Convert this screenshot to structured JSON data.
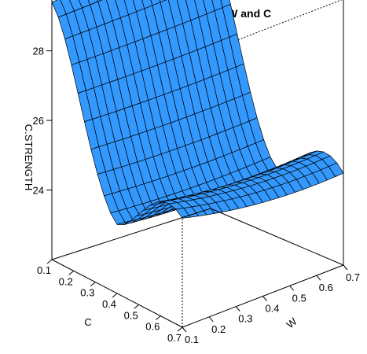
{
  "chart_data": {
    "type": "surface",
    "title": "C.STRENGTH vs W and C",
    "xlabel": "W",
    "ylabel": "C",
    "zlabel": "C.STRENGTH",
    "x_ticks": [
      "0.1",
      "0.2",
      "0.3",
      "0.4",
      "0.5",
      "0.6",
      "0.7"
    ],
    "y_ticks": [
      "0.1",
      "0.2",
      "0.3",
      "0.4",
      "0.5",
      "0.6",
      "0.7"
    ],
    "z_ticks": [
      "24",
      "26",
      "28"
    ],
    "xlim": [
      0.1,
      0.7
    ],
    "ylim": [
      0.1,
      0.7
    ],
    "zlim": [
      22.0,
      29.8
    ],
    "surface_color": "#3399ff",
    "grid_size": 20,
    "corner_values": {
      "W0.1_C0.1": 29.4,
      "W0.7_C0.1": 29.8,
      "W0.1_C0.7": 25.2,
      "W0.7_C0.7": 24.7
    },
    "valley_min": 22.6
  }
}
